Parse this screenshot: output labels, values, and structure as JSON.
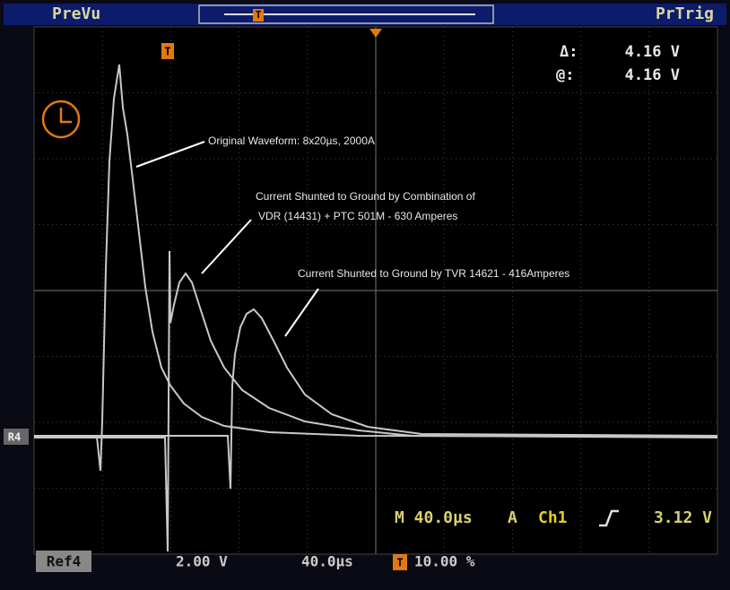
{
  "header": {
    "left": "PreVu",
    "right": "PrTrig",
    "trigger_marker": "T"
  },
  "readout": {
    "delta_label": "Δ:",
    "delta_value": "4.16 V",
    "at_label": "@:",
    "at_value": "4.16 V"
  },
  "annotations": [
    "Original Waveform: 8x20µs, 2000A",
    "Current Shunted to Ground by Combination of",
    "VDR (14431) + PTC 501M - 630 Amperes",
    "Current Shunted to Ground by TVR 14621 - 416Amperes"
  ],
  "markers": {
    "trigger": "T",
    "reference": "R4"
  },
  "status": {
    "timebase": "M 40.0µs",
    "mode": "A",
    "channel": "Ch1",
    "level": "3.12 V"
  },
  "footer": {
    "ref": "Ref4",
    "scale": "2.00 V",
    "time": "40.0µs",
    "trigger_icon": "T",
    "position": "10.00 %"
  }
}
